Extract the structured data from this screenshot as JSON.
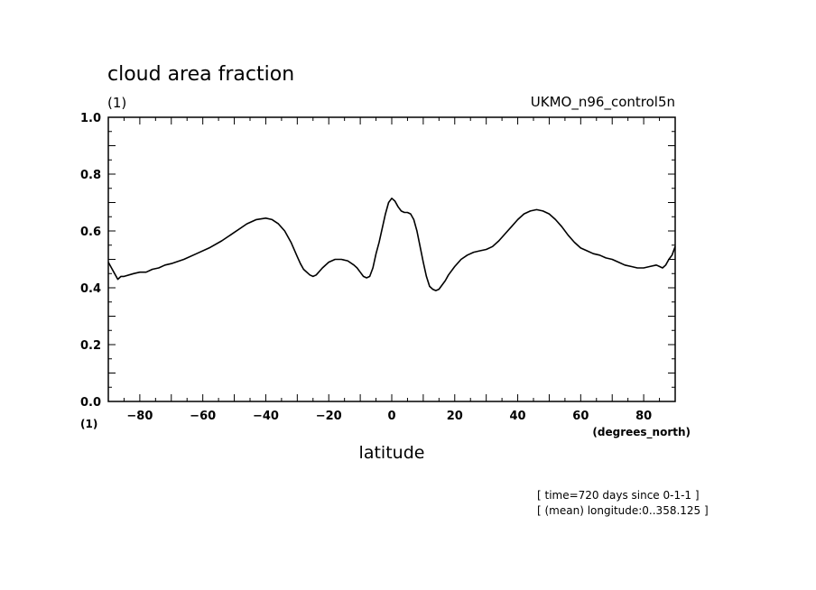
{
  "chart_data": {
    "type": "line",
    "title": "cloud area fraction",
    "units_label": "(1)",
    "dataset": "UKMO_n96_control5n",
    "xlabel": "latitude",
    "xunit": "(degrees_north)",
    "yunit_bottom": "(1)",
    "xlim": [
      -90,
      90
    ],
    "ylim": [
      0.0,
      1.0
    ],
    "x_ticks": [
      -80,
      -60,
      -40,
      -20,
      0,
      20,
      40,
      60,
      80
    ],
    "x_tick_labels": [
      "-80",
      "-60",
      "-40",
      "-20",
      "0",
      "20",
      "40",
      "60",
      "80"
    ],
    "y_ticks": [
      0.0,
      0.2,
      0.4,
      0.6,
      0.8,
      1.0
    ],
    "y_tick_labels": [
      "0.0",
      "0.2",
      "0.4",
      "0.6",
      "0.8",
      "1.0"
    ],
    "grid": false,
    "series": [
      {
        "x": [
          -90,
          -89,
          -88,
          -87,
          -86,
          -85,
          -82,
          -80,
          -78,
          -76,
          -74,
          -72,
          -70,
          -66,
          -62,
          -58,
          -54,
          -50,
          -46,
          -43,
          -40,
          -38,
          -36,
          -34,
          -32,
          -30,
          -29,
          -28,
          -26,
          -25,
          -24,
          -22,
          -20,
          -18,
          -16,
          -14,
          -12,
          -11,
          -10,
          -9,
          -8,
          -7,
          -6,
          -5,
          -4,
          -3,
          -2,
          -1,
          0,
          1,
          2,
          3,
          4,
          5,
          6,
          7,
          8,
          9,
          10,
          11,
          12,
          13,
          14,
          15,
          16,
          17,
          18,
          20,
          22,
          24,
          26,
          28,
          30,
          32,
          34,
          36,
          38,
          40,
          42,
          44,
          46,
          48,
          50,
          52,
          54,
          56,
          58,
          60,
          62,
          64,
          66,
          68,
          70,
          72,
          74,
          76,
          78,
          80,
          82,
          84,
          85,
          86,
          87,
          88,
          89,
          90
        ],
        "y": [
          0.49,
          0.47,
          0.45,
          0.43,
          0.44,
          0.44,
          0.45,
          0.455,
          0.455,
          0.465,
          0.47,
          0.48,
          0.485,
          0.5,
          0.52,
          0.54,
          0.565,
          0.595,
          0.625,
          0.64,
          0.645,
          0.64,
          0.625,
          0.6,
          0.56,
          0.51,
          0.485,
          0.465,
          0.445,
          0.44,
          0.445,
          0.47,
          0.49,
          0.5,
          0.5,
          0.495,
          0.48,
          0.47,
          0.455,
          0.44,
          0.435,
          0.44,
          0.47,
          0.52,
          0.56,
          0.61,
          0.66,
          0.7,
          0.715,
          0.705,
          0.685,
          0.67,
          0.665,
          0.665,
          0.66,
          0.64,
          0.6,
          0.545,
          0.49,
          0.44,
          0.405,
          0.395,
          0.39,
          0.395,
          0.41,
          0.425,
          0.445,
          0.475,
          0.5,
          0.515,
          0.525,
          0.53,
          0.535,
          0.545,
          0.565,
          0.59,
          0.615,
          0.64,
          0.66,
          0.67,
          0.675,
          0.67,
          0.66,
          0.64,
          0.615,
          0.585,
          0.56,
          0.54,
          0.53,
          0.52,
          0.515,
          0.505,
          0.5,
          0.49,
          0.48,
          0.475,
          0.47,
          0.47,
          0.475,
          0.48,
          0.475,
          0.47,
          0.48,
          0.5,
          0.515,
          0.545
        ]
      }
    ],
    "footnotes": [
      "[ time=720 days since 0-1-1 ]",
      "[ (mean) longitude:0..358.125 ]"
    ]
  }
}
